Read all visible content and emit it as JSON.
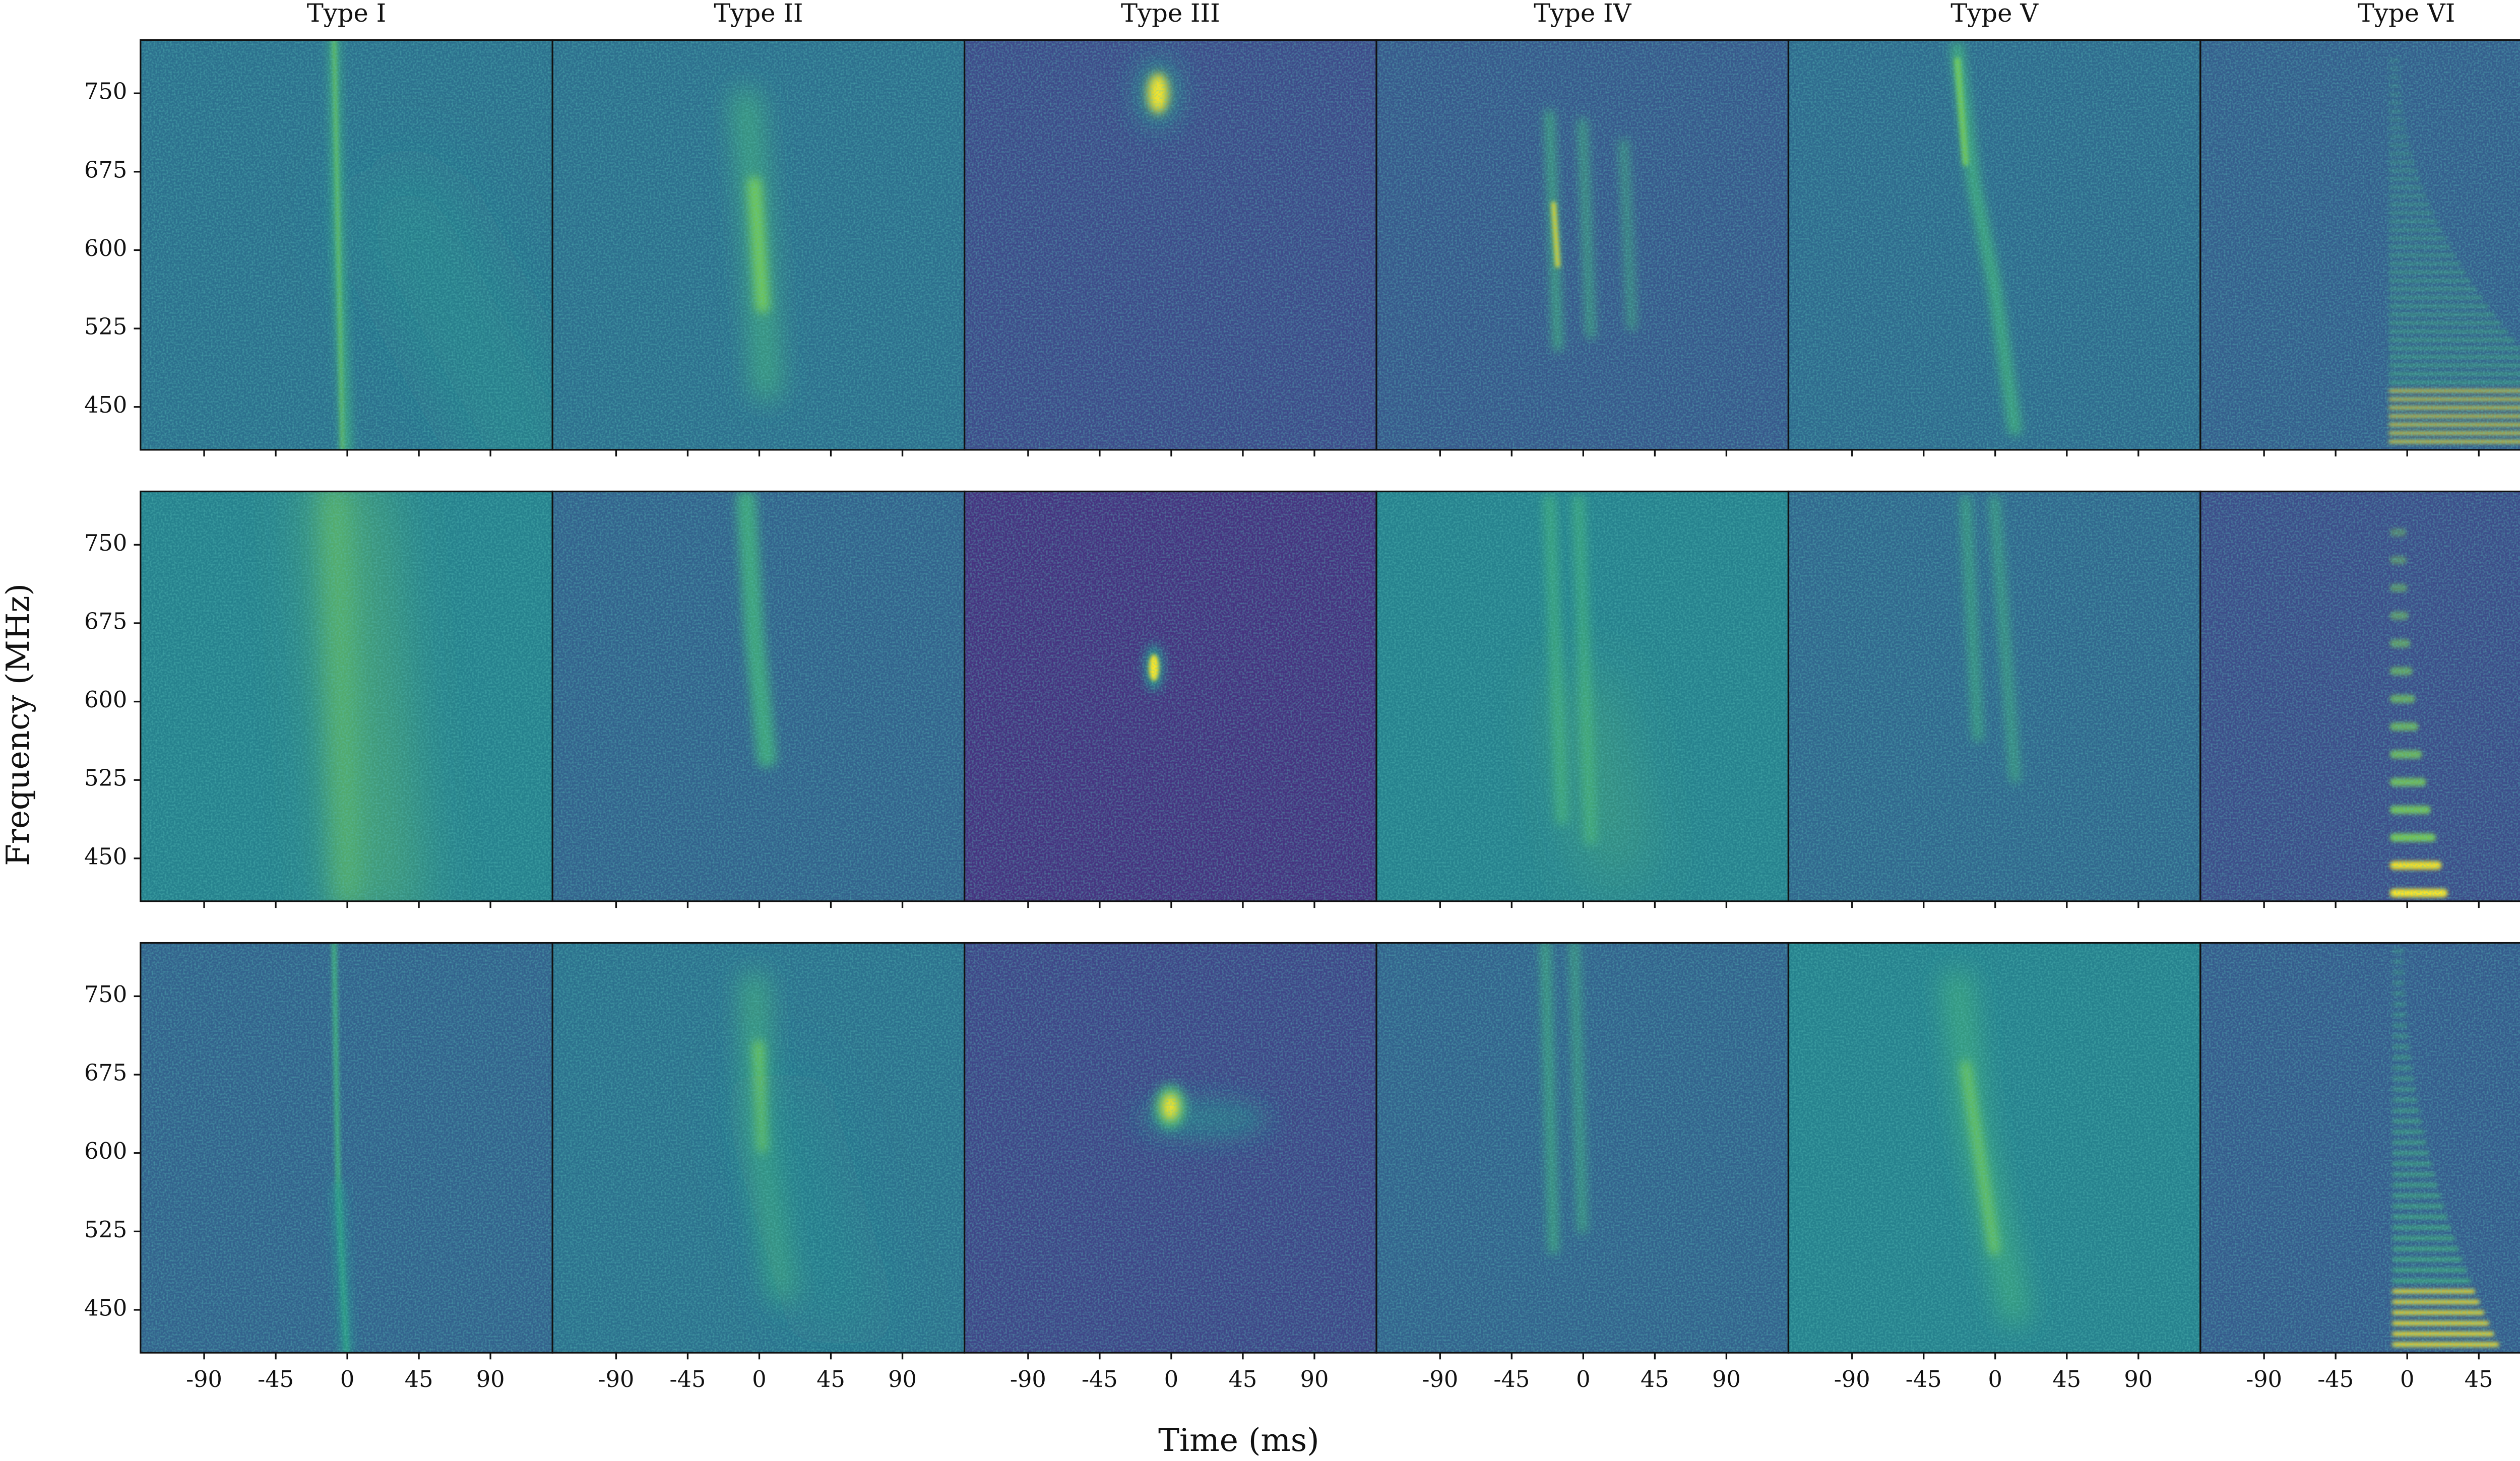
{
  "chart_data": {
    "type": "heatmap-grid",
    "column_titles": [
      "Type I",
      "Type II",
      "Type III",
      "Type IV",
      "Type V",
      "Type VI"
    ],
    "x_label": "Time (ms)",
    "y_label": "Frequency (MHz)",
    "xlim": [
      -130,
      129
    ],
    "ylim": [
      409,
      801
    ],
    "xticks": [
      -90,
      -45,
      0,
      45,
      90
    ],
    "yticks": [
      450,
      525,
      600,
      675,
      750
    ]
  }
}
